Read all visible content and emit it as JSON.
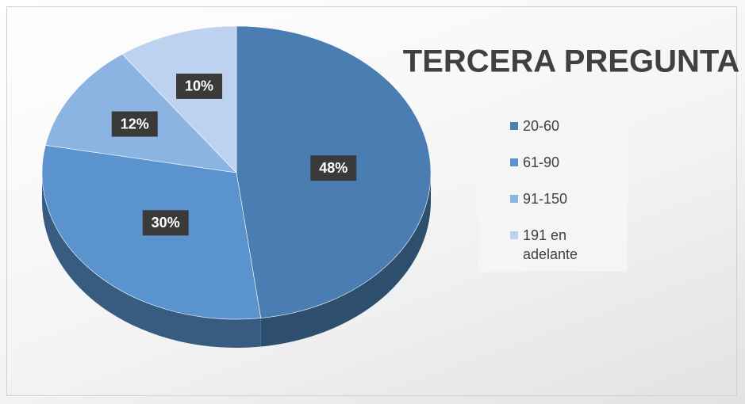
{
  "chart_data": {
    "type": "pie",
    "title": "TERCERA PREGUNTA",
    "categories": [
      "20-60",
      "61-90",
      "91-150",
      "191 en adelante"
    ],
    "values": [
      48,
      30,
      12,
      10
    ],
    "value_labels": [
      "48%",
      "30%",
      "12%",
      "10%"
    ],
    "colors": [
      "#4a7db1",
      "#5b93cf",
      "#8cb4e2",
      "#bcd2ee"
    ],
    "legend": "right"
  }
}
